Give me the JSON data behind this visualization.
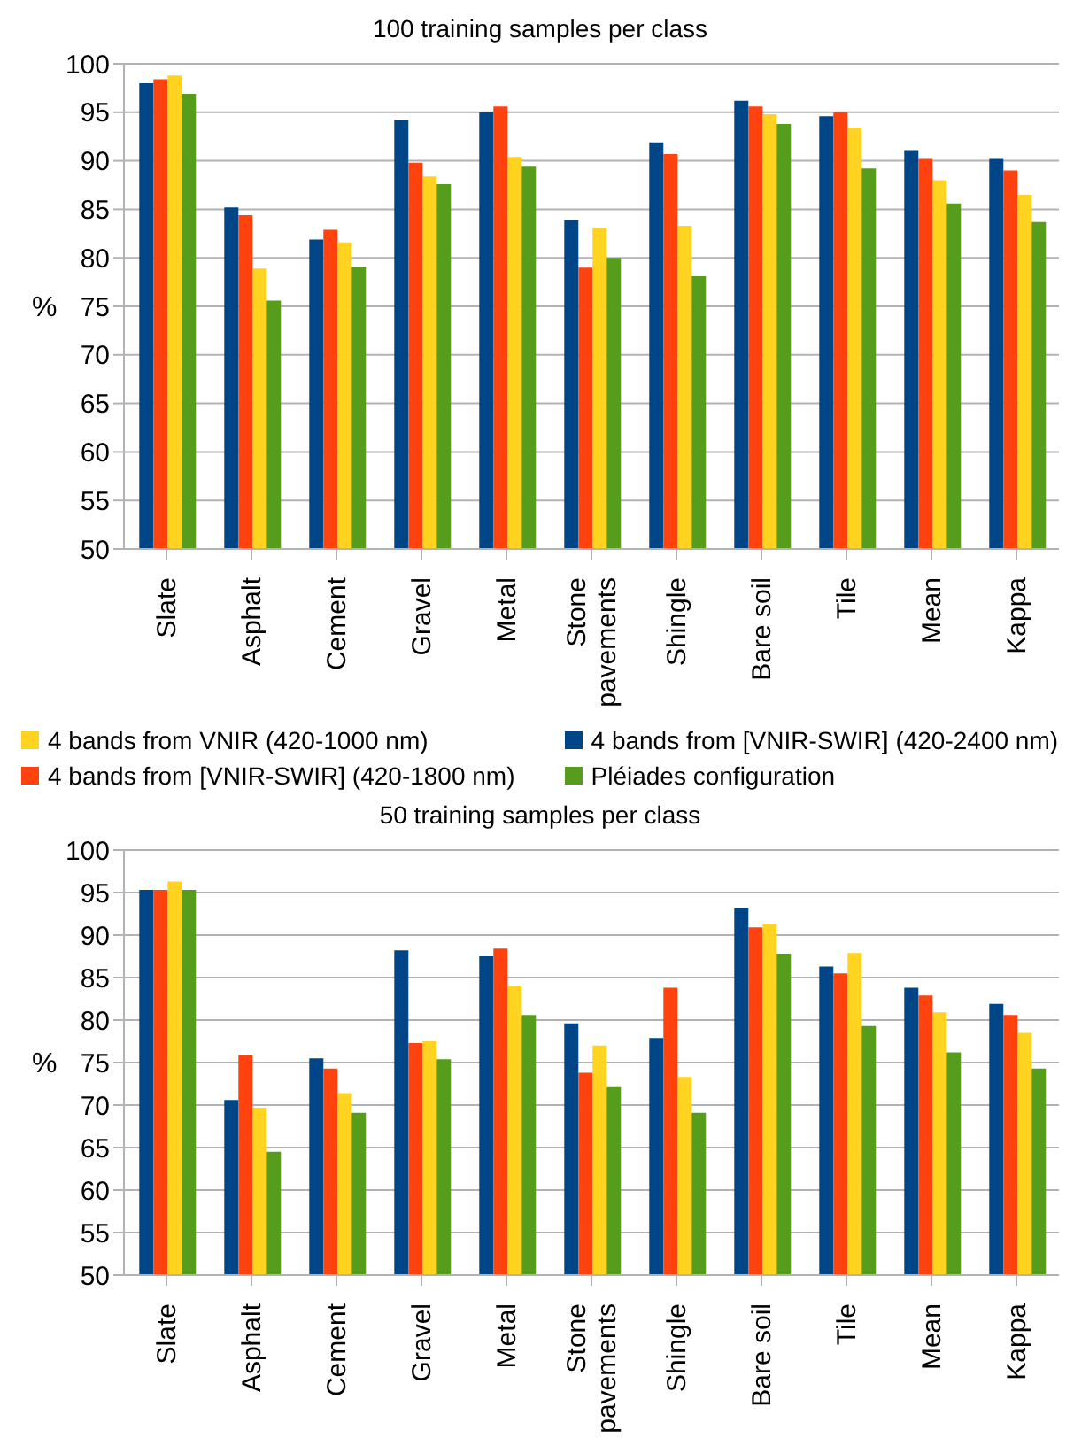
{
  "chart_data": [
    {
      "type": "bar",
      "title": "100 training samples per class",
      "ylabel": "%",
      "categories": [
        "Slate",
        "Asphalt",
        "Cement",
        "Gravel",
        "Metal",
        "Stone pavements",
        "Shingle",
        "Bare soil",
        "Tile",
        "Mean",
        "Kappa"
      ],
      "series": [
        {
          "name": "4 bands from [VNIR-SWIR] (420-2400 nm)",
          "color": "#004586",
          "values": [
            98.0,
            85.2,
            81.9,
            94.2,
            95.0,
            83.9,
            91.9,
            96.2,
            94.6,
            91.1,
            90.2
          ]
        },
        {
          "name": "4 bands from [VNIR-SWIR] (420-1800 nm)",
          "color": "#ff420e",
          "values": [
            98.4,
            84.4,
            82.9,
            89.8,
            95.6,
            79.0,
            90.7,
            95.6,
            95.0,
            90.2,
            89.0
          ]
        },
        {
          "name": "4 bands from VNIR (420-1000 nm)",
          "color": "#ffd320",
          "values": [
            98.8,
            78.9,
            81.6,
            88.4,
            90.4,
            83.1,
            83.3,
            94.8,
            93.4,
            88.0,
            86.5
          ]
        },
        {
          "name": "Pléiades configuration",
          "color": "#579d1c",
          "values": [
            96.9,
            75.6,
            79.1,
            87.6,
            89.4,
            80.0,
            78.1,
            93.8,
            89.2,
            85.6,
            83.7
          ]
        }
      ],
      "ylim": [
        50,
        100
      ],
      "yticks": [
        50,
        55,
        60,
        65,
        70,
        75,
        80,
        85,
        90,
        95,
        100
      ],
      "grid": "y",
      "legend": "bottom"
    },
    {
      "type": "bar",
      "title": "50 training samples per class",
      "ylabel": "%",
      "categories": [
        "Slate",
        "Asphalt",
        "Cement",
        "Gravel",
        "Metal",
        "Stone pavements",
        "Shingle",
        "Bare soil",
        "Tile",
        "Mean",
        "Kappa"
      ],
      "series": [
        {
          "color": "#004586",
          "values": [
            95.3,
            70.6,
            75.5,
            88.2,
            87.5,
            79.6,
            77.9,
            93.2,
            86.3,
            83.8,
            81.9
          ]
        },
        {
          "color": "#ff420e",
          "values": [
            95.3,
            75.9,
            74.3,
            77.3,
            88.4,
            73.8,
            83.8,
            90.9,
            85.5,
            82.9,
            80.6
          ]
        },
        {
          "color": "#ffd320",
          "values": [
            96.3,
            69.7,
            71.4,
            77.5,
            84.0,
            77.0,
            73.3,
            91.3,
            87.9,
            80.9,
            78.5
          ]
        },
        {
          "color": "#579d1c",
          "values": [
            95.3,
            64.5,
            69.1,
            75.4,
            80.6,
            72.1,
            69.1,
            87.8,
            79.3,
            76.2,
            74.3
          ]
        }
      ],
      "ylim": [
        50,
        100
      ],
      "yticks": [
        50,
        55,
        60,
        65,
        70,
        75,
        80,
        85,
        90,
        95,
        100
      ],
      "grid": "y",
      "legend": false
    }
  ]
}
